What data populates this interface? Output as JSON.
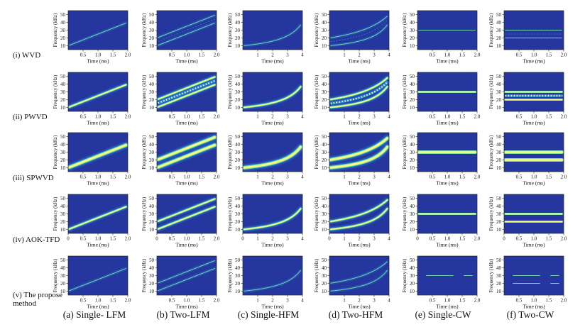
{
  "figure": {
    "row_labels": [
      "(i) WVD",
      "(ii) PWVD",
      "(iii) SPWVD",
      "(iv) AOK-TFD",
      "(v) The propose\nmethod"
    ],
    "column_labels": [
      "(a) Single- LFM",
      "(b) Two-LFM",
      "(c) Single-HFM",
      "(d) Two-HFM",
      "(e) Single-CW",
      "(f) Two-CW"
    ],
    "axis_labels": {
      "x": "Time (ms)",
      "y": "Frequency (kHz)"
    },
    "y_ticks": [
      10,
      20,
      30,
      40,
      50
    ],
    "x_ticks_2ms": [
      "0.5",
      "1.0",
      "1.5",
      "2.0"
    ],
    "x_ticks_2ms_with_zero": [
      "0",
      "0.5",
      "1.0",
      "1.5",
      "2.0"
    ],
    "x_ticks_4ms": [
      "1",
      "2",
      "3",
      "4"
    ],
    "x_ticks_4ms_with_zero": [
      "0",
      "1",
      "2",
      "3",
      "4"
    ],
    "colors": {
      "background": "#25369e",
      "ridge_core": "#ffff7a",
      "ridge_mid": "#7de8b0",
      "ridge_halo": "#2ea6d8",
      "cross_term": "#ffffff"
    }
  },
  "chart_data": {
    "type": "heatmap",
    "description_source": "time-frequency distributions",
    "xlim_2ms": [
      0,
      2.0
    ],
    "xlim_4ms": [
      0,
      4.0
    ],
    "ylim": [
      5,
      55
    ],
    "signals": [
      {
        "column": "Single- LFM",
        "duration_ms": 2,
        "components": [
          {
            "kind": "lfm",
            "f_start_khz": 10,
            "f_end_khz": 40
          }
        ]
      },
      {
        "column": "Two-LFM",
        "duration_ms": 2,
        "components": [
          {
            "kind": "lfm",
            "f_start_khz": 10,
            "f_end_khz": 40
          },
          {
            "kind": "lfm",
            "f_start_khz": 20,
            "f_end_khz": 50
          }
        ]
      },
      {
        "column": "Single-HFM",
        "duration_ms": 4,
        "components": [
          {
            "kind": "hfm",
            "f_start_khz": 10,
            "f_end_khz": 40
          }
        ]
      },
      {
        "column": "Two-HFM",
        "duration_ms": 4,
        "components": [
          {
            "kind": "hfm",
            "f_start_khz": 10,
            "f_end_khz": 40
          },
          {
            "kind": "hfm",
            "f_start_khz": 20,
            "f_end_khz": 50
          }
        ]
      },
      {
        "column": "Single-CW",
        "duration_ms": 2,
        "components": [
          {
            "kind": "cw",
            "f_khz": 30
          }
        ]
      },
      {
        "column": "Two-CW",
        "duration_ms": 2,
        "components": [
          {
            "kind": "cw",
            "f_khz": 20
          },
          {
            "kind": "cw",
            "f_khz": 30
          }
        ]
      }
    ],
    "methods": [
      {
        "row": "WVD",
        "ridge": "thin",
        "cross_terms": "faint"
      },
      {
        "row": "PWVD",
        "ridge": "medium",
        "cross_terms": "dotted"
      },
      {
        "row": "SPWVD",
        "ridge": "thick",
        "cross_terms": "none"
      },
      {
        "row": "AOK-TFD",
        "ridge": "medium",
        "cross_terms": "none"
      },
      {
        "row": "The propose method",
        "ridge": "thin",
        "cross_terms": "none",
        "segmented_cw": true
      }
    ]
  }
}
